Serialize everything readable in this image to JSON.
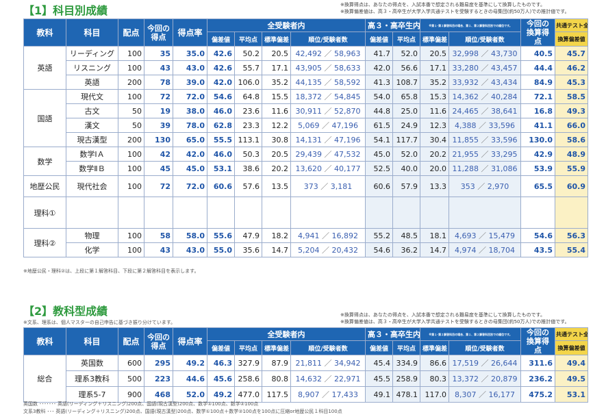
{
  "sec1": {
    "title": "【1】科目別成績",
    "note1": "※換算得点は、あなたの得点を、入試本番で想定される難易度を基準にして換算したものです。",
    "note2": "※換算偏差値は、高３・高卒生が大学入学共通テストを受験するときの母集団(約50万人)での推計値です。",
    "footer": "※地歴公民・理科②は、上段に第１解答科目、下段に第２解答科目を表示します。"
  },
  "sec2": {
    "title": "【2】教科型成績",
    "subnote": "※文系、理系は、個人マスターの自己申告に基づき振り分けています。",
    "note1": "※換算得点は、あなたの得点を、入試本番で想定される難易度を基準にして換算したものです。",
    "note2": "※換算偏差値は、高３・高卒生が大学入学共通テストを受験するときの母集団(約50万人)での推計値です。",
    "footer1": "英国数 ･･･････ 英語(リーディング＋リスニング)200点、国語(現古漢型)200点、数学①100点、数学②100点",
    "footer2": "文系3教科 ･･･ 英語(リーディング＋リスニング)200点、国語(現古漢型)200点、数学①100点＋数学②100点を100点に圧縮or地歴公民１科目100点"
  },
  "headers": {
    "kyouka": "教科",
    "kamoku": "科目",
    "haiten": "配点",
    "konkai_tokuten": "今回の得点",
    "tokutenritsu": "得点率",
    "zen_group": "全受験者内",
    "kou3_group": "高３・高卒生内",
    "kou3_note": "※第１･第２解答科目の場合、第１、第２解答科目別での順位です。",
    "hensachi": "偏差値",
    "heikin": "平均点",
    "hyoujun": "標準偏差",
    "juni": "順位/受験者数",
    "kansan_tokuten": "今回の換算得点",
    "kyoutsu": "共通テスト全体",
    "kansan_hensachi": "換算偏差値"
  },
  "table1": [
    {
      "group": "英語",
      "span": 3,
      "rows": [
        {
          "name": "リーディング",
          "haiten": "100",
          "score": "35",
          "rate": "35.0",
          "dev": "42.6",
          "avg": "50.2",
          "sd": "20.5",
          "rank": "42,492",
          "total": "58,963",
          "dev2": "41.7",
          "avg2": "52.0",
          "sd2": "20.5",
          "rank2": "32,998",
          "total2": "43,730",
          "kscore": "40.5",
          "kdev": "45.7"
        },
        {
          "name": "リスニング",
          "haiten": "100",
          "score": "43",
          "rate": "43.0",
          "dev": "42.6",
          "avg": "55.7",
          "sd": "17.1",
          "rank": "43,905",
          "total": "58,633",
          "dev2": "42.0",
          "avg2": "56.6",
          "sd2": "17.1",
          "rank2": "33,280",
          "total2": "43,457",
          "kscore": "44.4",
          "kdev": "46.2"
        },
        {
          "name": "英語",
          "haiten": "200",
          "score": "78",
          "rate": "39.0",
          "dev": "42.0",
          "avg": "106.0",
          "sd": "35.2",
          "rank": "44,135",
          "total": "58,592",
          "dev2": "41.3",
          "avg2": "108.7",
          "sd2": "35.2",
          "rank2": "33,932",
          "total2": "43,434",
          "kscore": "84.9",
          "kdev": "45.3"
        }
      ]
    },
    {
      "group": "国語",
      "span": 4,
      "rows": [
        {
          "name": "現代文",
          "haiten": "100",
          "score": "72",
          "rate": "72.0",
          "dev": "54.6",
          "avg": "64.8",
          "sd": "15.5",
          "rank": "18,372",
          "total": "54,845",
          "dev2": "54.0",
          "avg2": "65.8",
          "sd2": "15.3",
          "rank2": "14,362",
          "total2": "40,284",
          "kscore": "72.1",
          "kdev": "58.5"
        },
        {
          "name": "古文",
          "haiten": "50",
          "score": "19",
          "rate": "38.0",
          "dev": "46.0",
          "avg": "23.6",
          "sd": "11.6",
          "rank": "30,911",
          "total": "52,870",
          "dev2": "44.8",
          "avg2": "25.0",
          "sd2": "11.6",
          "rank2": "24,465",
          "total2": "38,641",
          "kscore": "16.8",
          "kdev": "49.3"
        },
        {
          "name": "漢文",
          "haiten": "50",
          "score": "39",
          "rate": "78.0",
          "dev": "62.8",
          "avg": "23.3",
          "sd": "12.2",
          "rank": "5,069",
          "total": "47,196",
          "dev2": "61.5",
          "avg2": "24.9",
          "sd2": "12.3",
          "rank2": "4,388",
          "total2": "33,596",
          "kscore": "41.1",
          "kdev": "66.0"
        },
        {
          "name": "現古漢型",
          "haiten": "200",
          "score": "130",
          "rate": "65.0",
          "dev": "55.5",
          "avg": "113.1",
          "sd": "30.8",
          "rank": "14,131",
          "total": "47,196",
          "dev2": "54.1",
          "avg2": "117.7",
          "sd2": "30.4",
          "rank2": "11,855",
          "total2": "33,596",
          "kscore": "130.0",
          "kdev": "58.6"
        }
      ]
    },
    {
      "group": "数学",
      "span": 2,
      "rows": [
        {
          "name": "数学ⅠＡ",
          "haiten": "100",
          "score": "42",
          "rate": "42.0",
          "dev": "46.0",
          "avg": "50.3",
          "sd": "20.5",
          "rank": "29,439",
          "total": "47,532",
          "dev2": "45.0",
          "avg2": "52.0",
          "sd2": "20.2",
          "rank2": "21,955",
          "total2": "33,295",
          "kscore": "42.9",
          "kdev": "48.9"
        },
        {
          "name": "数学ⅡＢ",
          "haiten": "100",
          "score": "45",
          "rate": "45.0",
          "dev": "53.1",
          "avg": "38.6",
          "sd": "20.2",
          "rank": "13,620",
          "total": "40,177",
          "dev2": "52.5",
          "avg2": "40.0",
          "sd2": "20.0",
          "rank2": "11,288",
          "total2": "31,086",
          "kscore": "53.9",
          "kdev": "55.9"
        }
      ]
    },
    {
      "group": "地歴公民",
      "span": 1,
      "rows": [
        {
          "name": "現代社会",
          "haiten": "100",
          "score": "72",
          "rate": "72.0",
          "dev": "60.6",
          "avg": "57.6",
          "sd": "13.5",
          "rank": "373",
          "total": "3,181",
          "dev2": "60.6",
          "avg2": "57.9",
          "sd2": "13.3",
          "rank2": "353",
          "total2": "2,970",
          "kscore": "65.5",
          "kdev": "60.9"
        }
      ]
    },
    {
      "group": "理科①",
      "span": 1,
      "rows": [
        {
          "name": "",
          "haiten": "",
          "score": "",
          "rate": "",
          "dev": "",
          "avg": "",
          "sd": "",
          "rank": "",
          "total": "",
          "dev2": "",
          "avg2": "",
          "sd2": "",
          "rank2": "",
          "total2": "",
          "kscore": "",
          "kdev": ""
        }
      ]
    },
    {
      "group": "理科②",
      "span": 2,
      "rows": [
        {
          "name": "物理",
          "haiten": "100",
          "score": "58",
          "rate": "58.0",
          "dev": "55.6",
          "avg": "47.9",
          "sd": "18.2",
          "rank": "4,941",
          "total": "16,892",
          "dev2": "55.2",
          "avg2": "48.5",
          "sd2": "18.1",
          "rank2": "4,693",
          "total2": "15,479",
          "kscore": "54.6",
          "kdev": "56.3"
        },
        {
          "name": "化学",
          "haiten": "100",
          "score": "43",
          "rate": "43.0",
          "dev": "55.0",
          "avg": "35.6",
          "sd": "14.7",
          "rank": "5,204",
          "total": "20,432",
          "dev2": "54.6",
          "avg2": "36.2",
          "sd2": "14.7",
          "rank2": "4,974",
          "total2": "18,704",
          "kscore": "43.5",
          "kdev": "55.4"
        }
      ]
    }
  ],
  "table2": [
    {
      "group": "総合",
      "span": 3,
      "rows": [
        {
          "name": "英国数",
          "haiten": "600",
          "score": "295",
          "rate": "49.2",
          "dev": "46.3",
          "avg": "327.9",
          "sd": "87.9",
          "rank": "21,811",
          "total": "34,942",
          "dev2": "45.4",
          "avg2": "334.9",
          "sd2": "86.6",
          "rank2": "17,519",
          "total2": "26,644",
          "kscore": "311.6",
          "kdev": "49.4"
        },
        {
          "name": "理系3教科",
          "haiten": "500",
          "score": "223",
          "rate": "44.6",
          "dev": "45.6",
          "avg": "258.6",
          "sd": "80.8",
          "rank": "14,632",
          "total": "22,971",
          "dev2": "45.5",
          "avg2": "258.9",
          "sd2": "80.3",
          "rank2": "13,372",
          "total2": "20,879",
          "kscore": "236.2",
          "kdev": "49.5"
        },
        {
          "name": "理系5-7",
          "haiten": "900",
          "score": "468",
          "rate": "52.0",
          "dev": "49.2",
          "avg": "477.0",
          "sd": "117.5",
          "rank": "8,907",
          "total": "17,433",
          "dev2": "49.1",
          "avg2": "478.1",
          "sd2": "117.0",
          "rank2": "8,307",
          "total2": "16,177",
          "kscore": "475.2",
          "kdev": "53.1"
        }
      ]
    }
  ],
  "sep": "／"
}
